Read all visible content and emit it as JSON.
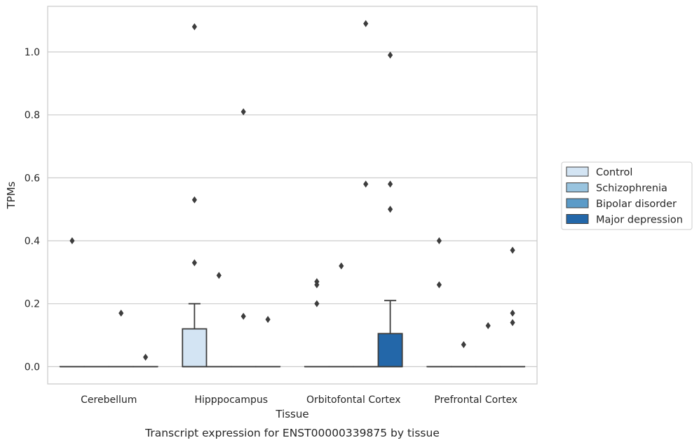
{
  "chart_data": {
    "type": "box",
    "title": "",
    "caption": "Transcript expression for ENST00000339875 by tissue",
    "xlabel": "Tissue",
    "ylabel": "TPMs",
    "ylim": [
      -0.055,
      1.145
    ],
    "yticks": [
      0.0,
      0.2,
      0.4,
      0.6,
      0.8,
      1.0
    ],
    "ytick_labels": [
      "0.0",
      "0.2",
      "0.4",
      "0.6",
      "0.8",
      "1.0"
    ],
    "grid": "horizontal",
    "legend_position": "right",
    "categories": [
      "Cerebellum",
      "Hipppocampus",
      "Orbitofontal Cortex",
      "Prefrontal Cortex"
    ],
    "series": [
      {
        "name": "Control",
        "color": "#d3e4f3",
        "boxes": [
          {
            "category": "Cerebellum",
            "q1": 0,
            "median": 0,
            "q3": 0,
            "whisker_low": 0,
            "whisker_high": 0,
            "outliers": [
              0.4
            ]
          },
          {
            "category": "Hipppocampus",
            "q1": 0,
            "median": 0,
            "q3": 0.12,
            "whisker_low": 0,
            "whisker_high": 0.2,
            "outliers": [
              1.08,
              0.53,
              0.33
            ]
          },
          {
            "category": "Orbitofontal Cortex",
            "q1": 0,
            "median": 0,
            "q3": 0,
            "whisker_low": 0,
            "whisker_high": 0,
            "outliers": [
              0.27,
              0.26,
              0.2
            ]
          },
          {
            "category": "Prefrontal Cortex",
            "q1": 0,
            "median": 0,
            "q3": 0,
            "whisker_low": 0,
            "whisker_high": 0,
            "outliers": [
              0.4,
              0.26
            ]
          }
        ]
      },
      {
        "name": "Schizophrenia",
        "color": "#99c4df",
        "boxes": [
          {
            "category": "Cerebellum",
            "q1": 0,
            "median": 0,
            "q3": 0,
            "whisker_low": 0,
            "whisker_high": 0,
            "outliers": []
          },
          {
            "category": "Hipppocampus",
            "q1": 0,
            "median": 0,
            "q3": 0,
            "whisker_low": 0,
            "whisker_high": 0,
            "outliers": [
              0.29
            ]
          },
          {
            "category": "Orbitofontal Cortex",
            "q1": 0,
            "median": 0,
            "q3": 0,
            "whisker_low": 0,
            "whisker_high": 0,
            "outliers": [
              0.32
            ]
          },
          {
            "category": "Prefrontal Cortex",
            "q1": 0,
            "median": 0,
            "q3": 0,
            "whisker_low": 0,
            "whisker_high": 0,
            "outliers": [
              0.07
            ]
          }
        ]
      },
      {
        "name": "Bipolar disorder",
        "color": "#5b9bc8",
        "boxes": [
          {
            "category": "Cerebellum",
            "q1": 0,
            "median": 0,
            "q3": 0,
            "whisker_low": 0,
            "whisker_high": 0,
            "outliers": [
              0.17
            ]
          },
          {
            "category": "Hipppocampus",
            "q1": 0,
            "median": 0,
            "q3": 0,
            "whisker_low": 0,
            "whisker_high": 0,
            "outliers": [
              0.81,
              0.16
            ]
          },
          {
            "category": "Orbitofontal Cortex",
            "q1": 0,
            "median": 0,
            "q3": 0,
            "whisker_low": 0,
            "whisker_high": 0,
            "outliers": [
              1.09,
              0.58
            ]
          },
          {
            "category": "Prefrontal Cortex",
            "q1": 0,
            "median": 0,
            "q3": 0,
            "whisker_low": 0,
            "whisker_high": 0,
            "outliers": [
              0.13
            ]
          }
        ]
      },
      {
        "name": "Major depression",
        "color": "#2367a9",
        "boxes": [
          {
            "category": "Cerebellum",
            "q1": 0,
            "median": 0,
            "q3": 0,
            "whisker_low": 0,
            "whisker_high": 0,
            "outliers": [
              0.03
            ]
          },
          {
            "category": "Hipppocampus",
            "q1": 0,
            "median": 0,
            "q3": 0,
            "whisker_low": 0,
            "whisker_high": 0,
            "outliers": [
              0.15
            ]
          },
          {
            "category": "Orbitofontal Cortex",
            "q1": 0,
            "median": 0,
            "q3": 0.105,
            "whisker_low": 0,
            "whisker_high": 0.21,
            "outliers": [
              0.99,
              0.58,
              0.5
            ]
          },
          {
            "category": "Prefrontal Cortex",
            "q1": 0,
            "median": 0,
            "q3": 0,
            "whisker_low": 0,
            "whisker_high": 0,
            "outliers": [
              0.37,
              0.17,
              0.14
            ]
          }
        ]
      }
    ]
  }
}
